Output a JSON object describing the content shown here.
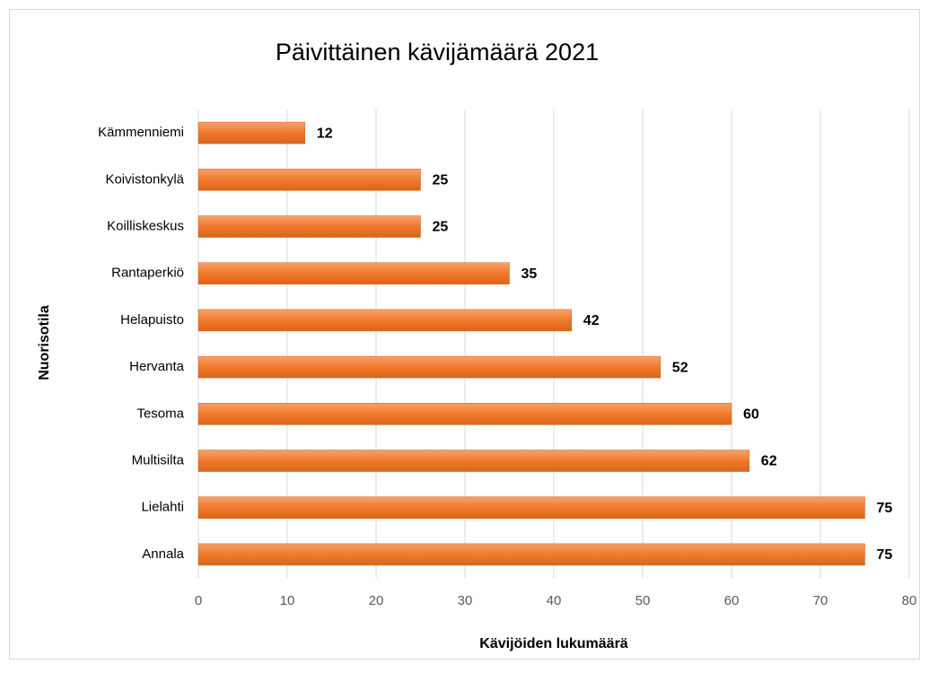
{
  "chart_data": {
    "type": "bar",
    "orientation": "horizontal",
    "title": "Päivittäinen kävijämäärä 2021",
    "xlabel": "Kävijöiden lukumäärä",
    "ylabel": "Nuorisotila",
    "categories": [
      "Kämmenniemi",
      "Koivistonkylä",
      "Koilliskeskus",
      "Rantaperkiö",
      "Helapuisto",
      "Hervanta",
      "Tesoma",
      "Multisilta",
      "Lielahti",
      "Annala"
    ],
    "values": [
      12,
      25,
      25,
      35,
      42,
      52,
      60,
      62,
      75,
      75
    ],
    "color": "#ed7d31",
    "xlim": [
      0,
      80
    ],
    "xticks": [
      0,
      10,
      20,
      30,
      40,
      50,
      60,
      70,
      80
    ],
    "grid": true
  }
}
